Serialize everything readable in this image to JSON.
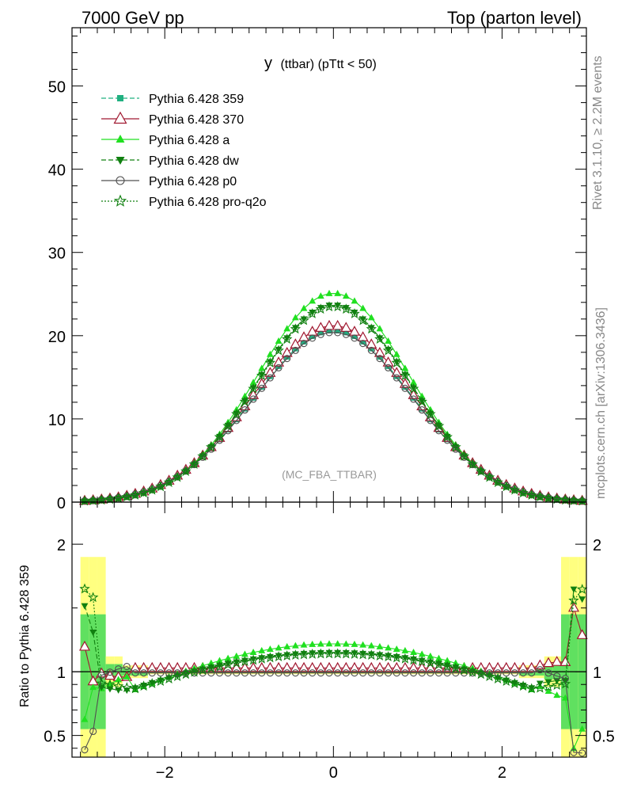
{
  "header": {
    "energy_label": "7000 GeV pp",
    "process_label": "Top (parton level)"
  },
  "side": {
    "rivet_label": "Rivet 3.1.10, ≥ 2.2M events",
    "mcplots_label": "mcplots.cern.ch [arXiv:1306.3436]"
  },
  "plot_title": {
    "main": "y",
    "sub": "(ttbar) (pTtt < 50)"
  },
  "analysis_label": "(MC_FBA_TTBAR)",
  "ratio_ylabel": "Ratio to Pythia 6.428 359",
  "colors": {
    "p359": "#20b080",
    "p370": "#a01830",
    "pa": "#20e020",
    "pdw": "#108010",
    "pp0": "#505050",
    "ppq2o": "#108010",
    "band_yellow": "#ffff80",
    "band_green": "#60e060"
  },
  "chart_data": {
    "type": "line",
    "main": {
      "xlim": [
        -3.1,
        3.0
      ],
      "ylim": [
        0,
        57
      ],
      "yticks": [
        0,
        10,
        20,
        30,
        40,
        50
      ],
      "ytick_labels": [
        "0",
        "10",
        "20",
        "30",
        "40",
        "50"
      ]
    },
    "ratio": {
      "ylim": [
        0.33,
        2.33
      ],
      "yticks": [
        0.5,
        1,
        2
      ],
      "ytick_labels": [
        "0.5",
        "1",
        "2"
      ],
      "xticks": [
        -2,
        0,
        2
      ],
      "xtick_labels": [
        "−2",
        "0",
        "2"
      ]
    },
    "series": [
      {
        "key": "p359",
        "name": "Pythia 6.428 359",
        "amp": 20.6,
        "sigma": 0.95,
        "marker": "square",
        "dash": "6,3"
      },
      {
        "key": "p370",
        "name": "Pythia 6.428 370",
        "amp": 21.2,
        "sigma": 0.95,
        "marker": "triangle-open",
        "dash": ""
      },
      {
        "key": "pa",
        "name": "Pythia 6.428 a",
        "amp": 25.1,
        "sigma": 0.9,
        "marker": "triangle",
        "dash": ""
      },
      {
        "key": "pdw",
        "name": "Pythia 6.428 dw",
        "amp": 23.7,
        "sigma": 0.91,
        "marker": "triangle-down",
        "dash": "6,3"
      },
      {
        "key": "pp0",
        "name": "Pythia 6.428 p0",
        "amp": 20.4,
        "sigma": 0.95,
        "marker": "circle-open",
        "dash": ""
      },
      {
        "key": "ppq2o",
        "name": "Pythia 6.428 pro-q2o",
        "amp": 23.5,
        "sigma": 0.91,
        "marker": "star",
        "dash": "2,2"
      }
    ]
  }
}
